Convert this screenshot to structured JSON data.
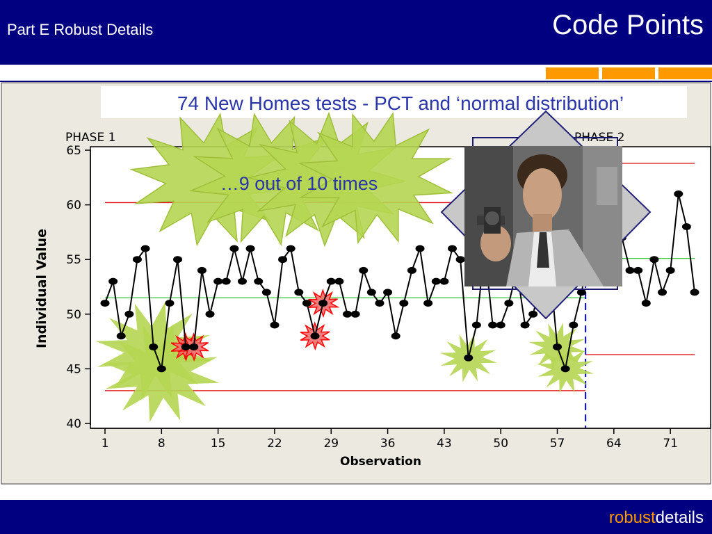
{
  "header": {
    "left_title": "Part E Robust Details",
    "right_title": "Code Points"
  },
  "footer": {
    "brand_part1": "robust",
    "brand_part2": "details"
  },
  "slide": {
    "title": "74 New Homes tests - PCT and ‘normal distribution’",
    "callout": "…9 out of 10 times",
    "photo_icon": "person-with-revolver-photo"
  },
  "colors": {
    "navy": "#000080",
    "orange": "#ff9900",
    "panel": "#ece9e0",
    "data_line": "#000000",
    "limit_lines": "#e00000",
    "center_line": "#33cc33",
    "phase_divider": "#0000cc",
    "burst_fill": "#b5d652",
    "red_burst": "#ef7070"
  },
  "chart_data": {
    "type": "line",
    "subtype": "individuals control chart",
    "xlabel": "Observation",
    "ylabel": "Individual Value",
    "phase_labels": [
      "PHASE 1",
      "PHASE 2"
    ],
    "ylim": [
      40,
      65
    ],
    "yticks": [
      40,
      45,
      50,
      55,
      60,
      65
    ],
    "xticks": [
      1,
      8,
      15,
      22,
      29,
      36,
      43,
      50,
      57,
      64,
      71
    ],
    "xlim": [
      0.5,
      74.5
    ],
    "phase_split": 60.5,
    "x": [
      1,
      2,
      3,
      4,
      5,
      6,
      7,
      8,
      9,
      10,
      11,
      12,
      13,
      14,
      15,
      16,
      17,
      18,
      19,
      20,
      21,
      22,
      23,
      24,
      25,
      26,
      27,
      28,
      29,
      30,
      31,
      32,
      33,
      34,
      35,
      36,
      37,
      38,
      39,
      40,
      41,
      42,
      43,
      44,
      45,
      46,
      47,
      48,
      49,
      50,
      51,
      52,
      53,
      54,
      55,
      56,
      57,
      58,
      59,
      60,
      61,
      62,
      63,
      64,
      65,
      66,
      67,
      68,
      69,
      70,
      71,
      72,
      73,
      74
    ],
    "values": [
      51,
      53,
      48,
      50,
      55,
      56,
      47,
      45,
      51,
      55,
      47,
      47,
      54,
      50,
      53,
      53,
      56,
      53,
      56,
      53,
      52,
      49,
      55,
      56,
      52,
      51,
      48,
      51,
      53,
      53,
      50,
      50,
      54,
      52,
      51,
      52,
      48,
      51,
      54,
      56,
      51,
      53,
      53,
      56,
      55,
      46,
      49,
      56,
      49,
      49,
      51,
      54,
      49,
      50,
      53,
      55,
      47,
      45,
      49,
      52,
      56,
      57,
      55,
      54,
      57,
      54,
      54,
      51,
      55,
      52,
      54,
      61,
      58,
      52
    ],
    "phase1": {
      "center": 51.5,
      "ucl": 60.2,
      "lcl": 43.0
    },
    "phase2": {
      "center": 55.1,
      "ucl": 63.8,
      "lcl": 46.3
    },
    "highlight_burst_points": [
      7,
      8,
      46,
      57,
      58
    ],
    "red_burst_points": [
      11,
      12,
      27,
      28
    ],
    "legend": "none",
    "grid": false
  }
}
